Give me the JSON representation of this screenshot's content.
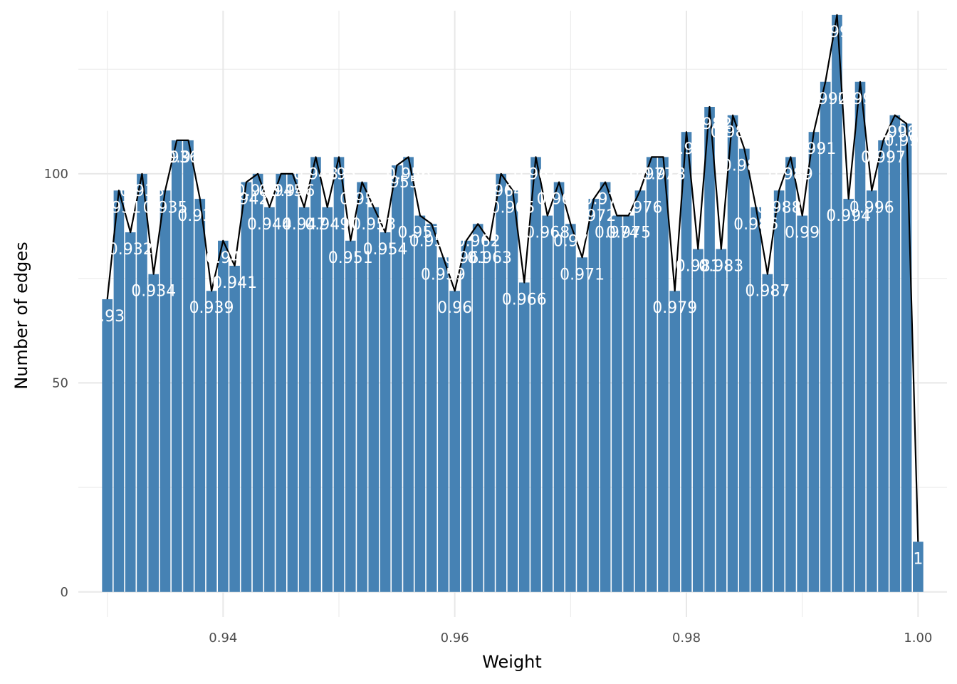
{
  "chart_data": {
    "type": "bar",
    "xlabel": "Weight",
    "ylabel": "Number of edges",
    "xlim": [
      0.9275,
      1.0025
    ],
    "ylim": [
      -6,
      139
    ],
    "x_ticks": [
      0.94,
      0.96,
      0.98,
      1.0
    ],
    "x_tick_labels": [
      "0.94",
      "0.96",
      "0.98",
      "1.00"
    ],
    "y_ticks": [
      0,
      50,
      100
    ],
    "y_tick_labels": [
      "0",
      "50",
      "100"
    ],
    "grid": true,
    "legend": "none",
    "bar_color": "#4682B4",
    "line_color": "#000000",
    "label_color": "#ffffff",
    "background": "#ffffff",
    "overlay": "line connecting bar tops",
    "x": [
      0.93,
      0.931,
      0.932,
      0.933,
      0.934,
      0.935,
      0.936,
      0.937,
      0.938,
      0.939,
      0.94,
      0.941,
      0.942,
      0.943,
      0.944,
      0.945,
      0.946,
      0.947,
      0.948,
      0.949,
      0.95,
      0.951,
      0.952,
      0.953,
      0.954,
      0.955,
      0.956,
      0.957,
      0.958,
      0.959,
      0.96,
      0.961,
      0.962,
      0.963,
      0.964,
      0.965,
      0.966,
      0.967,
      0.968,
      0.969,
      0.97,
      0.971,
      0.972,
      0.973,
      0.974,
      0.975,
      0.976,
      0.977,
      0.978,
      0.979,
      0.98,
      0.981,
      0.982,
      0.983,
      0.984,
      0.985,
      0.986,
      0.987,
      0.988,
      0.989,
      0.99,
      0.991,
      0.992,
      0.993,
      0.994,
      0.995,
      0.996,
      0.997,
      0.998,
      0.999,
      1.0
    ],
    "values": [
      70,
      96,
      86,
      100,
      76,
      96,
      108,
      108,
      94,
      72,
      84,
      78,
      98,
      100,
      92,
      100,
      100,
      92,
      104,
      92,
      104,
      84,
      98,
      92,
      86,
      102,
      104,
      90,
      88,
      80,
      72,
      84,
      88,
      84,
      100,
      96,
      74,
      104,
      90,
      98,
      88,
      80,
      94,
      98,
      90,
      90,
      96,
      104,
      104,
      72,
      110,
      82,
      116,
      82,
      114,
      106,
      92,
      76,
      96,
      104,
      90,
      110,
      122,
      138,
      94,
      122,
      96,
      108,
      114,
      112,
      12
    ],
    "labels": [
      "0.93",
      "0.931",
      "0.932",
      "0.933",
      "0.934",
      "0.935",
      "0.936",
      "0.937",
      "0.938",
      "0.939",
      "0.94",
      "0.941",
      "0.942",
      "0.943",
      "0.944",
      "0.945",
      "0.946",
      "0.947",
      "0.948",
      "0.949",
      "0.95",
      "0.951",
      "0.952",
      "0.953",
      "0.954",
      "0.955",
      "0.956",
      "0.957",
      "0.958",
      "0.959",
      "0.96",
      "0.961",
      "0.962",
      "0.963",
      "0.964",
      "0.965",
      "0.966",
      "0.967",
      "0.968",
      "0.969",
      "0.97",
      "0.971",
      "0.972",
      "0.973",
      "0.974",
      "0.975",
      "0.976",
      "0.977",
      "0.978",
      "0.979",
      "0.98",
      "0.981",
      "0.982",
      "0.983",
      "0.984",
      "0.985",
      "0.986",
      "0.987",
      "0.988",
      "0.989",
      "0.99",
      "0.991",
      "0.992",
      "0.993",
      "0.994",
      "0.995",
      "0.996",
      "0.997",
      "0.998",
      "0.999",
      "1"
    ]
  }
}
